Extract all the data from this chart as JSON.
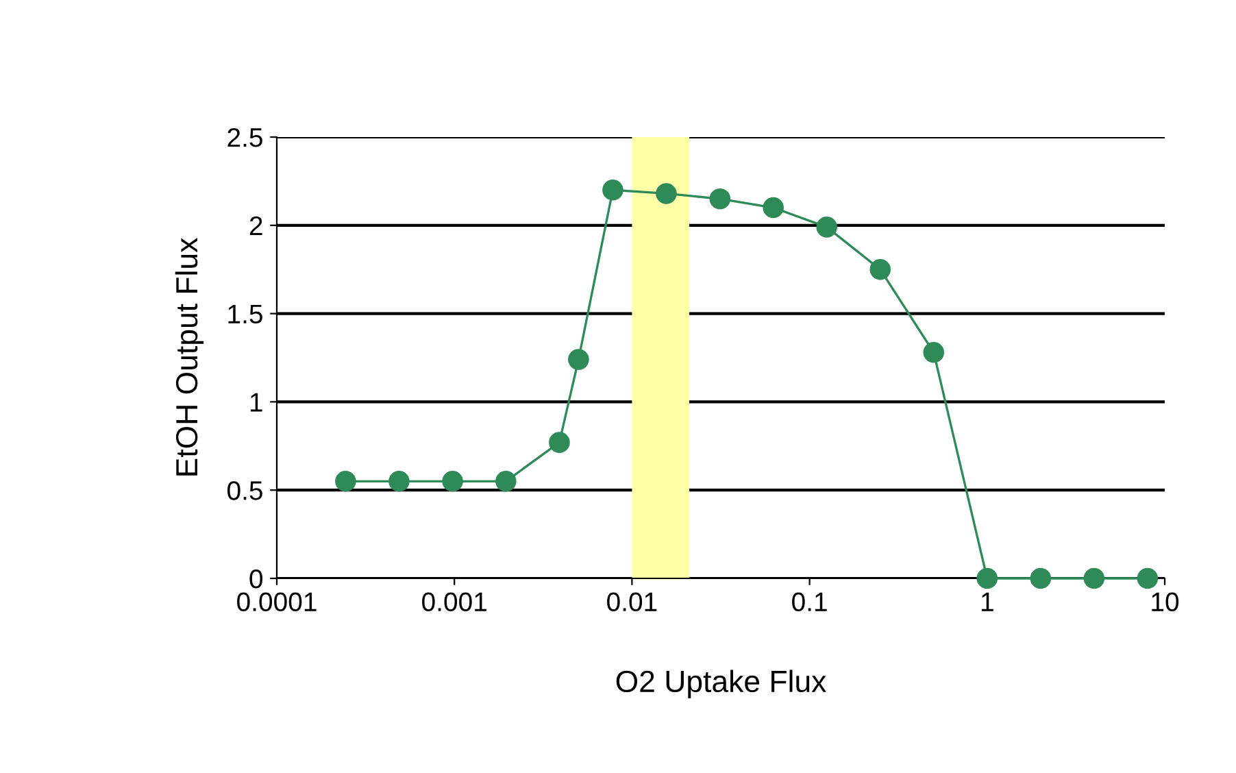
{
  "chart_data": {
    "type": "line",
    "xlabel": "O2 Uptake Flux",
    "ylabel": "EtOH Output Flux",
    "log": "x",
    "series": [
      {
        "color": "#2e8b57",
        "x": [
          0.000244,
          0.000488,
          0.000977,
          0.00195,
          0.0039,
          0.005,
          0.0078,
          0.0156,
          0.0313,
          0.0625,
          0.125,
          0.25,
          0.5,
          1,
          2,
          4,
          8
        ],
        "values": [
          0.55,
          0.55,
          0.55,
          0.55,
          0.77,
          1.24,
          2.2,
          2.18,
          2.15,
          2.1,
          1.99,
          1.75,
          1.28,
          0,
          0,
          0,
          0
        ]
      }
    ],
    "marker": "circle",
    "line_style": "solid",
    "xlim": [
      0.0001,
      10
    ],
    "xticks": [
      {
        "value": 0.0001,
        "label": "0.0001"
      },
      {
        "value": 0.001,
        "label": "0.001"
      },
      {
        "value": 0.01,
        "label": "0.01"
      },
      {
        "value": 0.1,
        "label": "0.1"
      },
      1,
      10
    ],
    "ylim": [
      0,
      2.5
    ],
    "yticks": [
      0,
      0.5,
      1,
      1.5,
      2,
      2.5
    ],
    "grid": "y",
    "bands": [
      {
        "axis": "x",
        "from": 0.01,
        "to": 0.021,
        "color": "#ffffa8"
      }
    ]
  }
}
